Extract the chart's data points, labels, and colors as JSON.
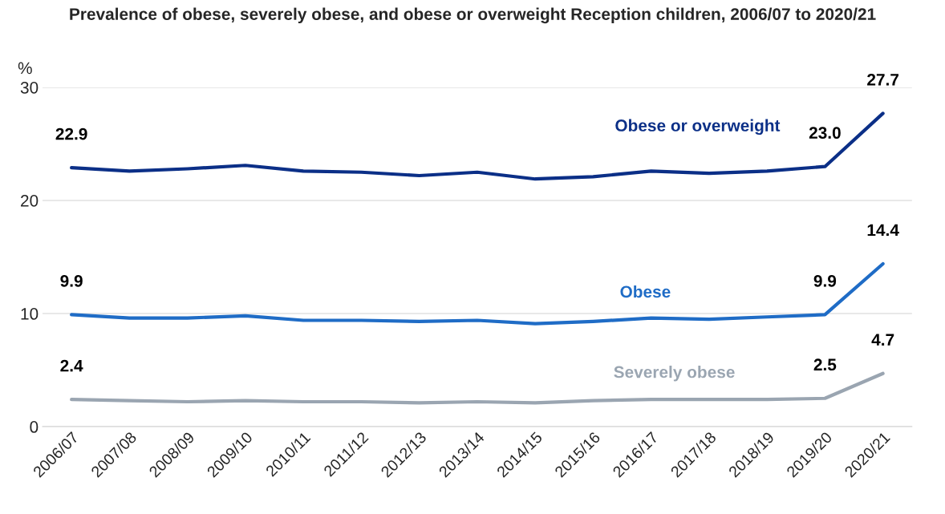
{
  "chart_data": {
    "type": "line",
    "title": "Prevalence of obese, severely obese, and obese or overweight Reception children, 2006/07 to 2020/21",
    "ylabel": "%",
    "categories": [
      "2006/07",
      "2007/08",
      "2008/09",
      "2009/10",
      "2010/11",
      "2011/12",
      "2012/13",
      "2013/14",
      "2014/15",
      "2015/16",
      "2016/17",
      "2017/18",
      "2018/19",
      "2019/20",
      "2020/21"
    ],
    "series": [
      {
        "name": "Obese or overweight",
        "color": "#0b2f87",
        "values": [
          22.9,
          22.6,
          22.8,
          23.1,
          22.6,
          22.5,
          22.2,
          22.5,
          21.9,
          22.1,
          22.6,
          22.4,
          22.6,
          23.0,
          27.7
        ],
        "value_labels": [
          "22.9",
          null,
          null,
          null,
          null,
          null,
          null,
          null,
          null,
          null,
          null,
          null,
          null,
          "23.0",
          "27.7"
        ]
      },
      {
        "name": "Obese",
        "color": "#1f6cc6",
        "values": [
          9.9,
          9.6,
          9.6,
          9.8,
          9.4,
          9.4,
          9.3,
          9.4,
          9.1,
          9.3,
          9.6,
          9.5,
          9.7,
          9.9,
          14.4
        ],
        "value_labels": [
          "9.9",
          null,
          null,
          null,
          null,
          null,
          null,
          null,
          null,
          null,
          null,
          null,
          null,
          "9.9",
          "14.4"
        ]
      },
      {
        "name": "Severely obese",
        "color": "#9aa5b1",
        "values": [
          2.4,
          2.3,
          2.2,
          2.3,
          2.2,
          2.2,
          2.1,
          2.2,
          2.1,
          2.3,
          2.4,
          2.4,
          2.4,
          2.5,
          4.7
        ],
        "value_labels": [
          "2.4",
          null,
          null,
          null,
          null,
          null,
          null,
          null,
          null,
          null,
          null,
          null,
          null,
          "2.5",
          "4.7"
        ]
      }
    ],
    "ylim": [
      0,
      30
    ],
    "yticks": [
      0,
      10,
      20,
      30
    ],
    "grid": "y",
    "legend": false,
    "marker": "none",
    "line_style": "solid"
  }
}
